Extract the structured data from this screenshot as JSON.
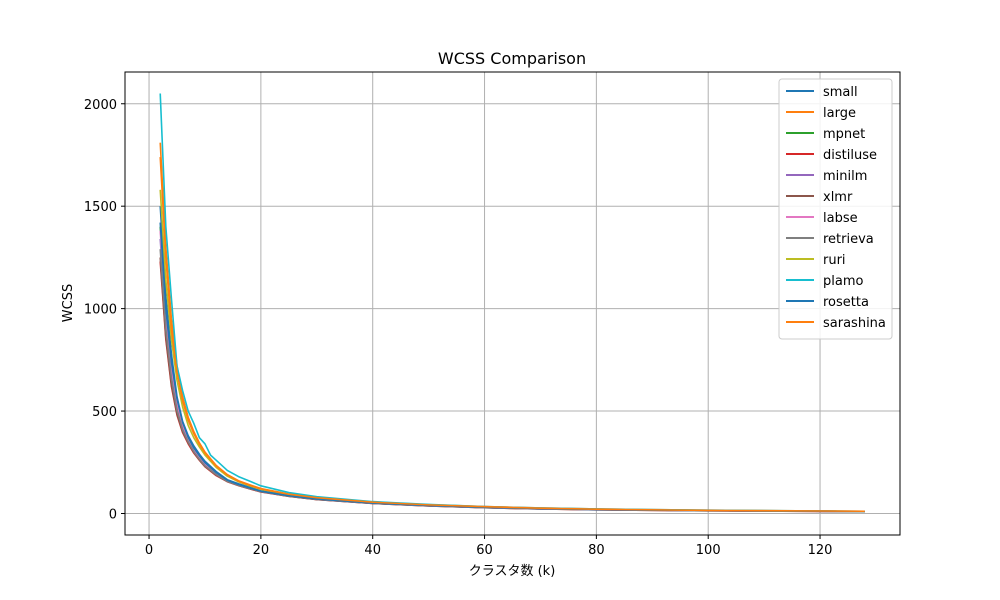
{
  "chart_data": {
    "type": "line",
    "title": "WCSS Comparison",
    "xlabel": "クラスタ数 (k)",
    "ylabel": "WCSS",
    "xlim": [
      -4.3,
      134.3
    ],
    "ylim": [
      -105,
      2155
    ],
    "xticks": [
      "0",
      "20",
      "40",
      "60",
      "80",
      "100",
      "120"
    ],
    "yticks": [
      "0",
      "500",
      "1000",
      "1500",
      "2000"
    ],
    "grid": true,
    "legend_position": "top-right",
    "series": [
      {
        "name": "small",
        "color": "#1f77b4",
        "x": [
          2,
          3,
          4,
          5,
          6,
          7,
          8,
          9,
          10,
          12,
          14,
          16,
          18,
          20,
          25,
          30,
          40,
          50,
          60,
          70,
          80,
          100,
          128
        ],
        "y": [
          1500,
          1060,
          780,
          570,
          450,
          380,
          330,
          290,
          255,
          205,
          165,
          145,
          128,
          110,
          88,
          70,
          50,
          38,
          29,
          23,
          19,
          14,
          10
        ]
      },
      {
        "name": "large",
        "color": "#ff7f0e",
        "x": [
          2,
          3,
          4,
          5,
          6,
          7,
          8,
          9,
          10,
          12,
          14,
          16,
          18,
          20,
          25,
          30,
          40,
          50,
          60,
          70,
          80,
          100,
          128
        ],
        "y": [
          1810,
          1300,
          950,
          720,
          570,
          470,
          400,
          345,
          300,
          235,
          190,
          160,
          140,
          122,
          95,
          78,
          56,
          43,
          34,
          27,
          22,
          16,
          11
        ]
      },
      {
        "name": "mpnet",
        "color": "#2ca02c",
        "x": [
          2,
          3,
          4,
          5,
          6,
          7,
          8,
          9,
          10,
          12,
          14,
          16,
          18,
          20,
          25,
          30,
          40,
          50,
          60,
          70,
          80,
          100,
          128
        ],
        "y": [
          1400,
          980,
          720,
          540,
          430,
          360,
          310,
          275,
          240,
          195,
          160,
          140,
          123,
          108,
          86,
          70,
          50,
          38,
          29,
          23,
          19,
          14,
          10
        ]
      },
      {
        "name": "distiluse",
        "color": "#d62728",
        "x": [
          2,
          3,
          4,
          5,
          6,
          7,
          8,
          9,
          10,
          12,
          14,
          16,
          18,
          20,
          25,
          30,
          40,
          50,
          60,
          70,
          80,
          100,
          128
        ],
        "y": [
          1230,
          850,
          620,
          480,
          395,
          340,
          295,
          260,
          228,
          185,
          155,
          136,
          120,
          105,
          84,
          68,
          49,
          37,
          28,
          22,
          18,
          13,
          9
        ]
      },
      {
        "name": "minilm",
        "color": "#9467bd",
        "x": [
          2,
          3,
          4,
          5,
          6,
          7,
          8,
          9,
          10,
          12,
          14,
          16,
          18,
          20,
          25,
          30,
          40,
          50,
          60,
          70,
          80,
          100,
          128
        ],
        "y": [
          1340,
          930,
          690,
          520,
          420,
          355,
          305,
          268,
          235,
          190,
          158,
          138,
          122,
          107,
          85,
          69,
          50,
          38,
          29,
          23,
          19,
          14,
          10
        ]
      },
      {
        "name": "xlmr",
        "color": "#8c564b",
        "x": [
          2,
          3,
          4,
          5,
          6,
          7,
          8,
          9,
          10,
          12,
          14,
          16,
          18,
          20,
          25,
          30,
          40,
          50,
          60,
          70,
          80,
          100,
          128
        ],
        "y": [
          1250,
          860,
          630,
          485,
          400,
          345,
          300,
          262,
          230,
          188,
          156,
          137,
          121,
          106,
          84,
          68,
          49,
          37,
          28,
          22,
          18,
          13,
          9
        ]
      },
      {
        "name": "labse",
        "color": "#e377c2",
        "x": [
          2,
          3,
          4,
          5,
          6,
          7,
          8,
          9,
          10,
          12,
          14,
          16,
          18,
          20,
          25,
          30,
          40,
          50,
          60,
          70,
          80,
          100,
          128
        ],
        "y": [
          1380,
          960,
          710,
          540,
          430,
          362,
          312,
          273,
          240,
          195,
          160,
          140,
          124,
          108,
          86,
          70,
          50,
          38,
          29,
          23,
          19,
          14,
          10
        ]
      },
      {
        "name": "retrieva",
        "color": "#7f7f7f",
        "x": [
          2,
          3,
          4,
          5,
          6,
          7,
          8,
          9,
          10,
          12,
          14,
          16,
          18,
          20,
          25,
          30,
          40,
          50,
          60,
          70,
          80,
          100,
          128
        ],
        "y": [
          1290,
          900,
          660,
          505,
          410,
          350,
          302,
          265,
          233,
          190,
          157,
          138,
          122,
          107,
          85,
          69,
          50,
          38,
          29,
          23,
          19,
          14,
          10
        ]
      },
      {
        "name": "ruri",
        "color": "#bcbd22",
        "x": [
          2,
          3,
          4,
          5,
          6,
          7,
          8,
          9,
          10,
          12,
          14,
          16,
          18,
          20,
          25,
          30,
          40,
          50,
          60,
          70,
          80,
          100,
          128
        ],
        "y": [
          1580,
          1140,
          850,
          650,
          520,
          430,
          370,
          325,
          285,
          225,
          182,
          155,
          135,
          118,
          92,
          75,
          54,
          41,
          32,
          25,
          21,
          15,
          10
        ]
      },
      {
        "name": "plamo",
        "color": "#17becf",
        "x": [
          2,
          3,
          4,
          5,
          6,
          7,
          8,
          9,
          10,
          11,
          12,
          14,
          16,
          18,
          20,
          25,
          30,
          40,
          50,
          60,
          70,
          80,
          100,
          128
        ],
        "y": [
          2050,
          1400,
          1050,
          720,
          600,
          500,
          440,
          370,
          340,
          285,
          260,
          210,
          180,
          158,
          135,
          102,
          82,
          58,
          44,
          34,
          27,
          22,
          16,
          11
        ]
      },
      {
        "name": "rosetta",
        "color": "#1f77b4",
        "x": [
          2,
          3,
          4,
          5,
          6,
          7,
          8,
          9,
          10,
          12,
          14,
          16,
          18,
          20,
          25,
          30,
          40,
          50,
          60,
          70,
          80,
          100,
          128
        ],
        "y": [
          1420,
          1000,
          740,
          560,
          445,
          372,
          320,
          282,
          248,
          200,
          163,
          142,
          125,
          109,
          87,
          71,
          51,
          39,
          30,
          24,
          19,
          14,
          10
        ]
      },
      {
        "name": "sarashina",
        "color": "#ff7f0e",
        "x": [
          2,
          3,
          4,
          5,
          6,
          7,
          8,
          9,
          10,
          12,
          14,
          16,
          18,
          20,
          25,
          30,
          40,
          50,
          60,
          70,
          80,
          100,
          128
        ],
        "y": [
          1740,
          1250,
          900,
          690,
          550,
          455,
          390,
          338,
          295,
          232,
          188,
          158,
          138,
          120,
          94,
          77,
          55,
          42,
          33,
          26,
          21,
          15,
          11
        ]
      }
    ]
  }
}
